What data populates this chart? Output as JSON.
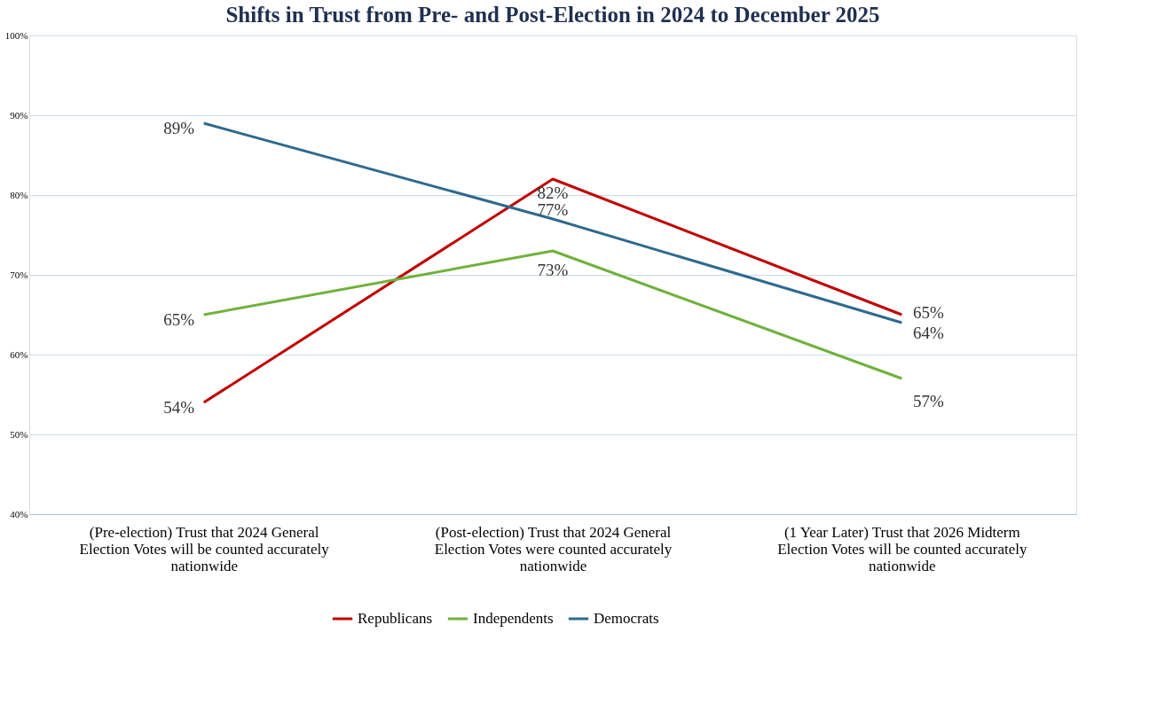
{
  "chart_data": {
    "type": "line",
    "title": "Shifts in Trust from Pre- and Post-Election in 2024 to December 2025",
    "categories": [
      "(Pre-election) Trust that 2024 General Election Votes will be counted accurately nationwide",
      "(Post-election) Trust that 2024 General Election Votes were counted accurately nationwide",
      "(1 Year Later) Trust that 2026 Midterm Election Votes will be counted accurately nationwide"
    ],
    "series": [
      {
        "name": "Republicans",
        "color": "#c00000",
        "values": [
          54,
          82,
          65
        ],
        "value_labels": [
          "54%",
          "82%",
          "65%"
        ]
      },
      {
        "name": "Independents",
        "color": "#70b13c",
        "values": [
          65,
          73,
          57
        ],
        "value_labels": [
          "65%",
          "73%",
          "57%"
        ]
      },
      {
        "name": "Democrats",
        "color": "#2e6a8e",
        "values": [
          89,
          77,
          64
        ],
        "value_labels": [
          "89%",
          "77%",
          "64%"
        ]
      }
    ],
    "ylim": [
      40,
      100
    ],
    "yticks": [
      {
        "value": 40,
        "label": "40%"
      },
      {
        "value": 50,
        "label": "50%"
      },
      {
        "value": 60,
        "label": "60%"
      },
      {
        "value": 70,
        "label": "70%"
      },
      {
        "value": 80,
        "label": "80%"
      },
      {
        "value": 90,
        "label": "90%"
      },
      {
        "value": 100,
        "label": "100%"
      }
    ],
    "grid": "y",
    "legend": "bottom",
    "marker": "none",
    "line_style": "solid"
  }
}
